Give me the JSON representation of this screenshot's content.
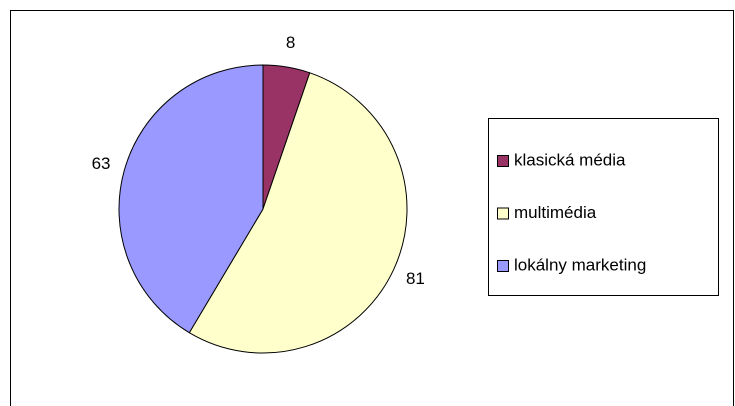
{
  "chart_data": {
    "type": "pie",
    "categories": [
      "klasická média",
      "multimédia",
      "lokálny marketing"
    ],
    "values": [
      8,
      81,
      63
    ],
    "colors": [
      "#993366",
      "#ffffcc",
      "#9999ff"
    ],
    "legend": "right"
  }
}
